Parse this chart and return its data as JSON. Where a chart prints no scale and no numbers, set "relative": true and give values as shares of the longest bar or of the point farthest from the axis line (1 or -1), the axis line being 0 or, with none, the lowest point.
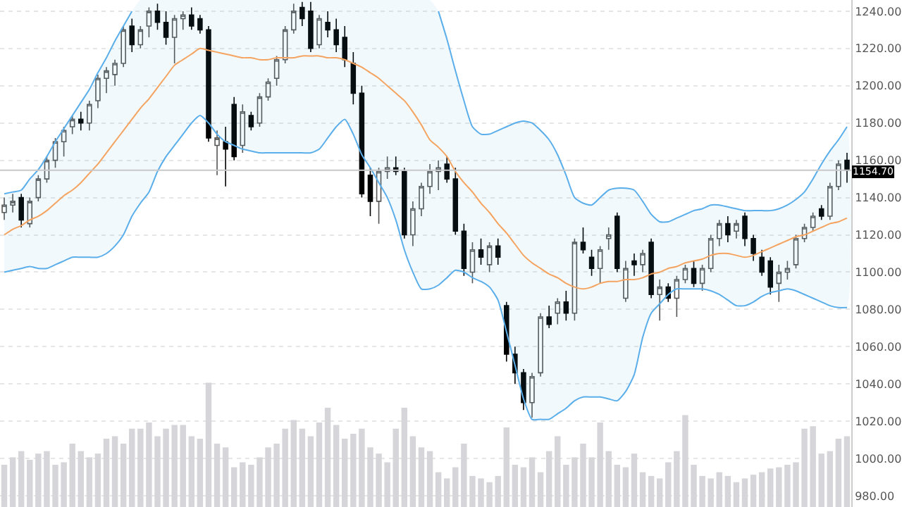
{
  "chart_data": [
    {
      "type": "candlestick",
      "categories": [
        null,
        null,
        null,
        null,
        null,
        null,
        null,
        null,
        null,
        null,
        null,
        null,
        null,
        null,
        null,
        null,
        null,
        null,
        null,
        null,
        null,
        null,
        null,
        null,
        null,
        null,
        null,
        null,
        null,
        null,
        null,
        null,
        null,
        null,
        null,
        null,
        null,
        null,
        null,
        null,
        null,
        null,
        null,
        null,
        null,
        null,
        null,
        null,
        null,
        null,
        null,
        null,
        null,
        null,
        null,
        null,
        null,
        null,
        null,
        null,
        null,
        null,
        null,
        null,
        null,
        null,
        null,
        null,
        null,
        null,
        null,
        null,
        null,
        null,
        null,
        null,
        null,
        null,
        null,
        null,
        null,
        null,
        null,
        null,
        null,
        null,
        null,
        null,
        null,
        null,
        null,
        null,
        null,
        null,
        null,
        null,
        null,
        null,
        null,
        null
      ],
      "ohlc": [
        [
          1132,
          1140,
          1128,
          1136
        ],
        [
          1136,
          1142,
          1132,
          1138
        ],
        [
          1140,
          1142,
          1124,
          1128
        ],
        [
          1126,
          1140,
          1124,
          1138
        ],
        [
          1140,
          1152,
          1138,
          1150
        ],
        [
          1150,
          1162,
          1148,
          1160
        ],
        [
          1160,
          1172,
          1156,
          1170
        ],
        [
          1170,
          1178,
          1162,
          1176
        ],
        [
          1178,
          1184,
          1174,
          1182
        ],
        [
          1182,
          1186,
          1176,
          1180
        ],
        [
          1180,
          1192,
          1176,
          1190
        ],
        [
          1192,
          1206,
          1188,
          1204
        ],
        [
          1204,
          1210,
          1196,
          1208
        ],
        [
          1206,
          1214,
          1200,
          1212
        ],
        [
          1212,
          1232,
          1210,
          1230
        ],
        [
          1232,
          1236,
          1218,
          1222
        ],
        [
          1222,
          1232,
          1220,
          1230
        ],
        [
          1232,
          1242,
          1226,
          1240
        ],
        [
          1240,
          1244,
          1230,
          1234
        ],
        [
          1234,
          1240,
          1222,
          1226
        ],
        [
          1226,
          1238,
          1212,
          1236
        ],
        [
          1236,
          1240,
          1230,
          1238
        ],
        [
          1238,
          1242,
          1230,
          1232
        ],
        [
          1236,
          1238,
          1228,
          1230
        ],
        [
          1230,
          1232,
          1170,
          1172
        ],
        [
          1168,
          1176,
          1152,
          1172
        ],
        [
          1170,
          1178,
          1146,
          1166
        ],
        [
          1190,
          1194,
          1160,
          1162
        ],
        [
          1168,
          1190,
          1164,
          1186
        ],
        [
          1184,
          1186,
          1176,
          1178
        ],
        [
          1180,
          1196,
          1178,
          1194
        ],
        [
          1194,
          1204,
          1192,
          1202
        ],
        [
          1204,
          1216,
          1200,
          1214
        ],
        [
          1214,
          1232,
          1212,
          1230
        ],
        [
          1230,
          1244,
          1228,
          1240
        ],
        [
          1242,
          1245,
          1232,
          1236
        ],
        [
          1240,
          1245,
          1218,
          1220
        ],
        [
          1222,
          1238,
          1220,
          1236
        ],
        [
          1234,
          1240,
          1226,
          1230
        ],
        [
          1230,
          1236,
          1218,
          1222
        ],
        [
          1226,
          1232,
          1210,
          1214
        ],
        [
          1212,
          1218,
          1190,
          1196
        ],
        [
          1196,
          1200,
          1140,
          1142
        ],
        [
          1152,
          1156,
          1130,
          1138
        ],
        [
          1138,
          1156,
          1126,
          1154
        ],
        [
          1154,
          1162,
          1150,
          1156
        ],
        [
          1156,
          1162,
          1152,
          1154
        ],
        [
          1154,
          1156,
          1118,
          1120
        ],
        [
          1120,
          1138,
          1114,
          1134
        ],
        [
          1134,
          1148,
          1130,
          1146
        ],
        [
          1146,
          1158,
          1142,
          1154
        ],
        [
          1154,
          1160,
          1144,
          1156
        ],
        [
          1158,
          1162,
          1148,
          1150
        ],
        [
          1150,
          1156,
          1120,
          1122
        ],
        [
          1122,
          1126,
          1098,
          1102
        ],
        [
          1100,
          1116,
          1094,
          1112
        ],
        [
          1112,
          1118,
          1104,
          1108
        ],
        [
          1104,
          1116,
          1100,
          1114
        ],
        [
          1114,
          1118,
          1104,
          1108
        ],
        [
          1082,
          1084,
          1052,
          1056
        ],
        [
          1056,
          1060,
          1040,
          1046
        ],
        [
          1046,
          1048,
          1026,
          1030
        ],
        [
          1030,
          1046,
          1022,
          1044
        ],
        [
          1046,
          1078,
          1044,
          1076
        ],
        [
          1076,
          1082,
          1070,
          1072
        ],
        [
          1078,
          1086,
          1072,
          1084
        ],
        [
          1084,
          1090,
          1074,
          1078
        ],
        [
          1078,
          1118,
          1074,
          1116
        ],
        [
          1116,
          1124,
          1110,
          1112
        ],
        [
          1108,
          1112,
          1098,
          1102
        ],
        [
          1102,
          1114,
          1094,
          1112
        ],
        [
          1118,
          1124,
          1112,
          1120
        ],
        [
          1130,
          1132,
          1100,
          1102
        ],
        [
          1086,
          1106,
          1084,
          1102
        ],
        [
          1106,
          1110,
          1098,
          1104
        ],
        [
          1104,
          1112,
          1100,
          1110
        ],
        [
          1116,
          1118,
          1086,
          1088
        ],
        [
          1088,
          1096,
          1074,
          1092
        ],
        [
          1092,
          1094,
          1084,
          1086
        ],
        [
          1086,
          1098,
          1076,
          1096
        ],
        [
          1096,
          1104,
          1094,
          1102
        ],
        [
          1102,
          1106,
          1092,
          1094
        ],
        [
          1094,
          1104,
          1090,
          1102
        ],
        [
          1102,
          1120,
          1100,
          1118
        ],
        [
          1118,
          1128,
          1114,
          1126
        ],
        [
          1126,
          1130,
          1116,
          1120
        ],
        [
          1122,
          1128,
          1118,
          1126
        ],
        [
          1130,
          1132,
          1114,
          1118
        ],
        [
          1118,
          1120,
          1106,
          1110
        ],
        [
          1108,
          1112,
          1098,
          1100
        ],
        [
          1106,
          1108,
          1088,
          1092
        ],
        [
          1094,
          1104,
          1084,
          1100
        ],
        [
          1100,
          1106,
          1096,
          1102
        ],
        [
          1104,
          1120,
          1102,
          1118
        ],
        [
          1118,
          1126,
          1116,
          1124
        ],
        [
          1124,
          1132,
          1122,
          1130
        ],
        [
          1134,
          1136,
          1128,
          1130
        ],
        [
          1130,
          1148,
          1128,
          1146
        ],
        [
          1146,
          1160,
          1144,
          1158
        ],
        [
          1160,
          1164,
          1148,
          1154.7
        ]
      ],
      "ylim": [
        974,
        1246
      ],
      "yticks": [
        {
          "value": 980,
          "label": "980.00"
        },
        {
          "value": 1000,
          "label": "1000.00"
        },
        {
          "value": 1020,
          "label": "1020.00"
        },
        {
          "value": 1040,
          "label": "1040.00"
        },
        {
          "value": 1060,
          "label": "1060.00"
        },
        {
          "value": 1080,
          "label": "1080.00"
        },
        {
          "value": 1100,
          "label": "1100.00"
        },
        {
          "value": 1120,
          "label": "1120.00"
        },
        {
          "value": 1140,
          "label": "1140.00"
        },
        {
          "value": 1160,
          "label": "1160.00"
        },
        {
          "value": 1180,
          "label": "1180.00"
        },
        {
          "value": 1200,
          "label": "1200.00"
        },
        {
          "value": 1220,
          "label": "1220.00"
        },
        {
          "value": 1240,
          "label": "1240.00"
        }
      ],
      "tick_labels": "y",
      "grid": "y",
      "series": [
        {
          "type": "line",
          "color": "#5aaeea",
          "values": [
            1142,
            1143,
            1144,
            1150,
            1155,
            1162,
            1170,
            1177,
            1184,
            1191,
            1198,
            1207,
            1215,
            1224,
            1232,
            1240,
            null,
            null,
            null,
            null,
            null,
            null,
            null,
            null,
            null,
            null,
            null,
            null,
            null,
            null,
            null,
            null,
            null,
            null,
            null,
            null,
            null,
            null,
            null,
            null,
            null,
            null,
            null,
            null,
            null,
            null,
            null,
            null,
            null,
            null,
            null,
            1240,
            1225,
            1208,
            1192,
            1178,
            1174,
            1174,
            1176,
            1178,
            1180,
            1181,
            1180,
            1176,
            1171,
            1163,
            1152,
            1140,
            1137,
            1136,
            1140,
            1144,
            1145,
            1145,
            1144,
            1138,
            1131,
            1127,
            1127,
            1129,
            1131,
            1133,
            1134,
            1136,
            1136,
            1135,
            1134,
            1133,
            1133,
            1133,
            1133,
            1134,
            1136,
            1139,
            1143,
            1150,
            1158,
            1165,
            1171,
            1178
          ]
        },
        {
          "type": "line",
          "color": "#f4a460",
          "upper": [
            1142,
            1143,
            1144,
            1150,
            1155,
            1162,
            1170,
            1177,
            1184,
            1191,
            1198,
            1207,
            1215,
            1224,
            1232,
            1240,
            1246,
            1246,
            1246,
            1246,
            1246,
            1246,
            1246,
            1246,
            1246,
            1246,
            1246,
            1246,
            1246,
            1246,
            1246,
            1246,
            1246,
            1246,
            1246,
            1246,
            1246,
            1246,
            1246,
            1246,
            1246,
            1246,
            1246,
            1246,
            1246,
            1246,
            1246,
            1246,
            1246,
            1246,
            1246,
            1240,
            1225,
            1208,
            1192,
            1178,
            1174,
            1174,
            1176,
            1178,
            1180,
            1181,
            1180,
            1176,
            1171,
            1163,
            1152,
            1140,
            1137,
            1136,
            1140,
            1144,
            1145,
            1145,
            1144,
            1138,
            1131,
            1127,
            1127,
            1129,
            1131,
            1133,
            1134,
            1136,
            1136,
            1135,
            1134,
            1133,
            1133,
            1133,
            1133,
            1134,
            1136,
            1139,
            1143,
            1150,
            1158,
            1165,
            1171,
            1178
          ],
          "lower": [
            1100,
            1101,
            1102,
            1103,
            1102,
            1102,
            1104,
            1106,
            1108,
            1108,
            1108,
            1108,
            1110,
            1114,
            1120,
            1130,
            1137,
            1143,
            1154,
            1162,
            1168,
            1174,
            1180,
            1184,
            1180,
            1174,
            1170,
            1168,
            1166,
            1165,
            1164,
            1164,
            1164,
            1164,
            1164,
            1164,
            1164,
            1166,
            1172,
            1178,
            1182,
            1174,
            1163,
            1156,
            1148,
            1140,
            1128,
            1112,
            1100,
            1091,
            1091,
            1093,
            1097,
            1101,
            1100,
            1097,
            1095,
            1092,
            1085,
            1068,
            1050,
            1032,
            1021,
            1021,
            1021,
            1024,
            1027,
            1031,
            1033,
            1033,
            1033,
            1032,
            1031,
            1036,
            1045,
            1065,
            1078,
            1083,
            1088,
            1091,
            1091,
            1091,
            1091,
            1090,
            1088,
            1085,
            1082,
            1082,
            1084,
            1087,
            1089,
            1090,
            1091,
            1090,
            1088,
            1086,
            1084,
            1082,
            1081,
            1081
          ],
          "values": [
            1120,
            1123,
            1125,
            1128,
            1130,
            1133,
            1137,
            1141,
            1144,
            1148,
            1153,
            1158,
            1164,
            1170,
            1176,
            1182,
            1188,
            1193,
            1199,
            1205,
            1211,
            1214,
            1217,
            1220,
            1219,
            1218,
            1217,
            1216,
            1215,
            1215,
            1214,
            1214,
            1215,
            1215,
            1215,
            1216,
            1216,
            1216,
            1215,
            1215,
            1214,
            1212,
            1210,
            1207,
            1204,
            1200,
            1196,
            1192,
            1186,
            1179,
            1171,
            1167,
            1162,
            1154,
            1148,
            1143,
            1137,
            1132,
            1126,
            1121,
            1115,
            1109,
            1105,
            1102,
            1099,
            1097,
            1094,
            1092,
            1091,
            1092,
            1094,
            1095,
            1095,
            1096,
            1096,
            1097,
            1099,
            1100,
            1102,
            1103,
            1105,
            1106,
            1107,
            1109,
            1110,
            1110,
            1109,
            1108,
            1109,
            1111,
            1113,
            1115,
            1117,
            1119,
            1120,
            1122,
            1124,
            1126,
            1127,
            1129
          ]
        },
        {
          "type": "line",
          "color": "#5aaeea",
          "values": [
            1100,
            1101,
            1102,
            1103,
            1102,
            1102,
            1104,
            1106,
            1108,
            1108,
            1108,
            1108,
            1110,
            1114,
            1120,
            1130,
            1137,
            1143,
            1154,
            1162,
            1168,
            1174,
            1180,
            1184,
            1180,
            1174,
            1170,
            1168,
            1166,
            1165,
            1164,
            1164,
            1164,
            1164,
            1164,
            1164,
            1164,
            1166,
            1172,
            1178,
            1182,
            1174,
            1163,
            1156,
            1148,
            1140,
            1128,
            1112,
            1100,
            1091,
            1091,
            1093,
            1097,
            1101,
            1100,
            1097,
            1095,
            1092,
            1085,
            1068,
            1050,
            1032,
            1021,
            1021,
            1021,
            1024,
            1027,
            1031,
            1033,
            1033,
            1033,
            1032,
            1031,
            1036,
            1045,
            1065,
            1078,
            1083,
            1088,
            1091,
            1091,
            1091,
            1091,
            1090,
            1088,
            1085,
            1082,
            1082,
            1084,
            1087,
            1089,
            1090,
            1091,
            1090,
            1088,
            1086,
            1084,
            1082,
            1081,
            1081
          ]
        }
      ],
      "ref_lines": [
        {
          "axis": "y",
          "value": 1154.7,
          "label": "1154.70",
          "color": "#c8c8c8"
        }
      ]
    },
    {
      "type": "bar",
      "relative": true,
      "color": "#d6d6da",
      "categories": [
        null,
        null,
        null,
        null,
        null,
        null,
        null,
        null,
        null,
        null,
        null,
        null,
        null,
        null,
        null,
        null,
        null,
        null,
        null,
        null,
        null,
        null,
        null,
        null,
        null,
        null,
        null,
        null,
        null,
        null,
        null,
        null,
        null,
        null,
        null,
        null,
        null,
        null,
        null,
        null,
        null,
        null,
        null,
        null,
        null,
        null,
        null,
        null,
        null,
        null,
        null,
        null,
        null,
        null,
        null,
        null,
        null,
        null,
        null,
        null,
        null,
        null,
        null,
        null,
        null,
        null,
        null,
        null,
        null,
        null,
        null,
        null,
        null,
        null,
        null,
        null,
        null,
        null,
        null,
        null,
        null,
        null,
        null,
        null,
        null,
        null,
        null,
        null,
        null,
        null,
        null,
        null,
        null,
        null,
        null,
        null,
        null,
        null,
        null,
        null
      ],
      "values": [
        0.34,
        0.4,
        0.45,
        0.38,
        0.43,
        0.45,
        0.34,
        0.36,
        0.51,
        0.45,
        0.4,
        0.43,
        0.55,
        0.57,
        0.51,
        0.63,
        0.63,
        0.68,
        0.57,
        0.63,
        0.66,
        0.66,
        0.57,
        0.55,
        1,
        0.51,
        0.48,
        0.32,
        0.36,
        0.34,
        0.4,
        0.48,
        0.51,
        0.63,
        0.7,
        0.63,
        0.57,
        0.68,
        0.8,
        0.66,
        0.55,
        0.59,
        0.63,
        0.48,
        0.43,
        0.36,
        0.63,
        0.8,
        0.57,
        0.48,
        0.45,
        0.28,
        0.23,
        0.32,
        0.51,
        0.25,
        0.23,
        0.2,
        0.25,
        0.64,
        0.34,
        0.32,
        0.4,
        0.28,
        0.45,
        0.57,
        0.34,
        0.4,
        0.51,
        0.4,
        0.68,
        0.45,
        0.34,
        0.32,
        0.43,
        0.28,
        0.25,
        0.23,
        0.36,
        0.45,
        0.74,
        0.34,
        0.25,
        0.23,
        0.28,
        0.25,
        0.2,
        0.23,
        0.26,
        0.28,
        0.31,
        0.32,
        0.34,
        0.36,
        0.63,
        0.65,
        0.43,
        0.45,
        0.55,
        0.57
      ]
    }
  ]
}
